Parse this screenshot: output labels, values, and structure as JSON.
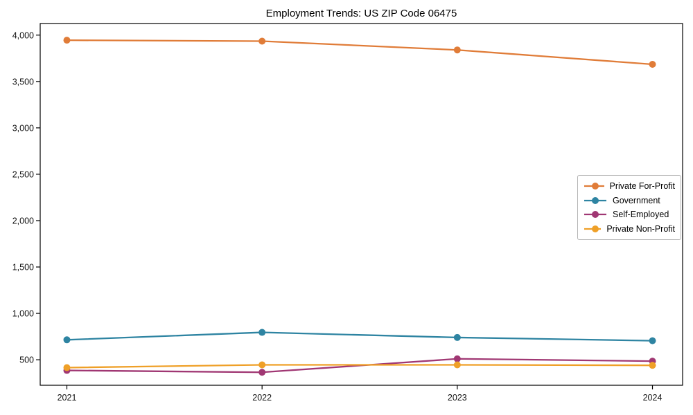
{
  "chart_data": {
    "type": "line",
    "title": "Employment Trends: US ZIP Code 06475",
    "xlabel": "",
    "ylabel": "",
    "categories": [
      "2021",
      "2022",
      "2023",
      "2024"
    ],
    "series": [
      {
        "name": "Private For-Profit",
        "color": "#e07c38",
        "values": [
          3945,
          3935,
          3840,
          3685
        ]
      },
      {
        "name": "Government",
        "color": "#2e84a2",
        "values": [
          715,
          795,
          740,
          705
        ]
      },
      {
        "name": "Self-Employed",
        "color": "#a03773",
        "values": [
          385,
          365,
          510,
          485
        ]
      },
      {
        "name": "Private Non-Profit",
        "color": "#efa028",
        "values": [
          415,
          445,
          445,
          440
        ]
      }
    ],
    "yticks": [
      500,
      1000,
      1500,
      2000,
      2500,
      3000,
      3500,
      4000
    ],
    "ylim": [
      225,
      4125
    ],
    "grid": false,
    "legend_position": "center-right",
    "marker": "circle",
    "axis_color": "#000000",
    "tick_label_color": "#111111"
  }
}
